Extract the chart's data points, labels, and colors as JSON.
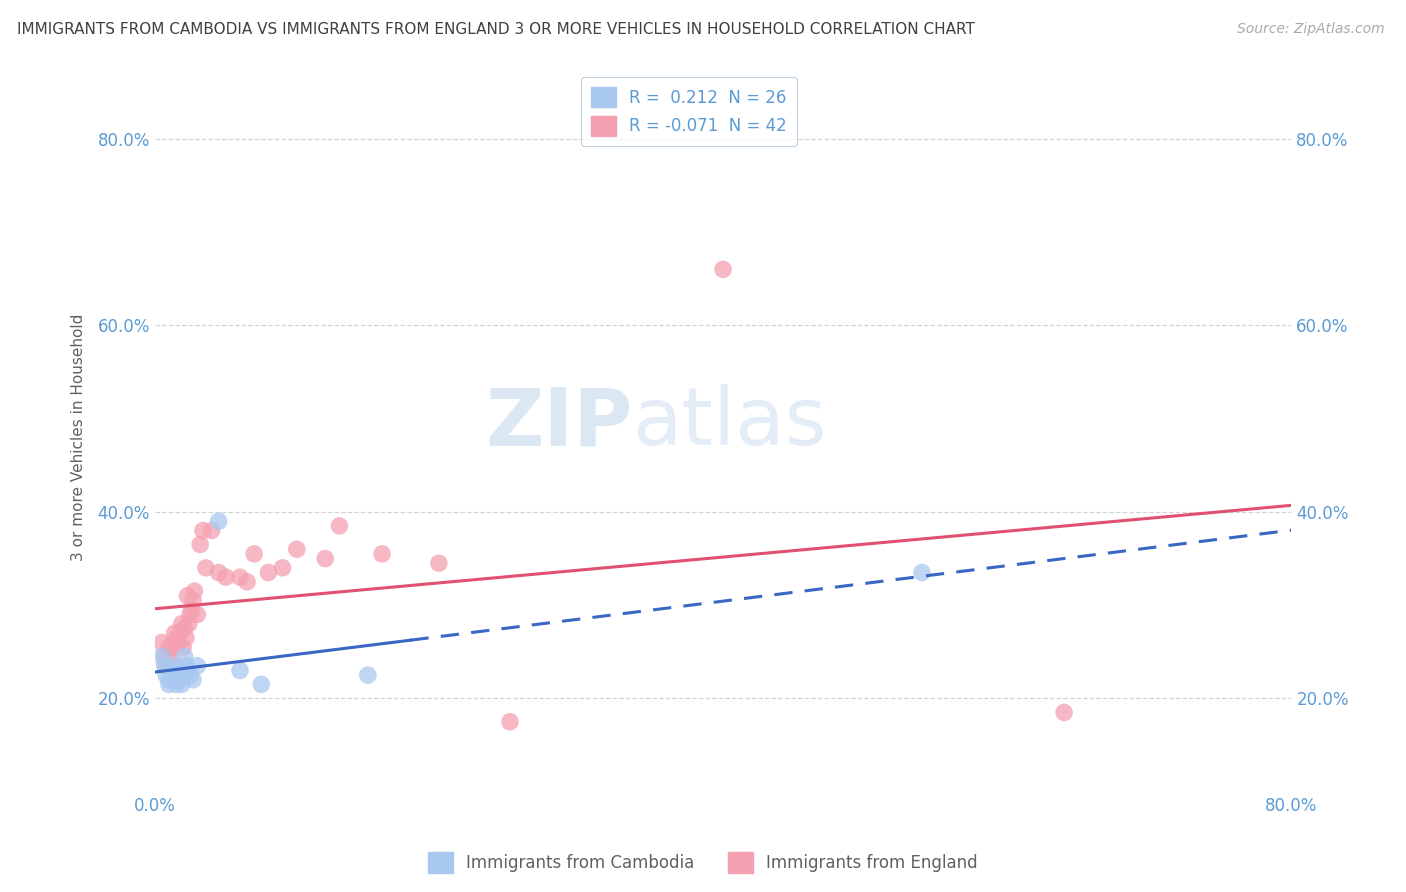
{
  "title": "IMMIGRANTS FROM CAMBODIA VS IMMIGRANTS FROM ENGLAND 3 OR MORE VEHICLES IN HOUSEHOLD CORRELATION CHART",
  "source": "Source: ZipAtlas.com",
  "legend_label1": "Immigrants from Cambodia",
  "legend_label2": "Immigrants from England",
  "cambodia_color": "#a8c8f0",
  "england_color": "#f4a0b0",
  "trendline_cambodia_color": "#3a66c4",
  "trendline_england_color": "#e05070",
  "background_color": "#ffffff",
  "grid_color": "#c8c8c8",
  "axis_label_color": "#5b9bd5",
  "title_color": "#404040",
  "watermark_color_zip": "#c8dff0",
  "watermark_color_atlas": "#c8dff0",
  "xmin": 0.0,
  "xmax": 0.8,
  "ymin": 0.1,
  "ymax": 0.86,
  "yticks": [
    0.2,
    0.4,
    0.6,
    0.8
  ],
  "xticks": [
    0.0,
    0.8
  ],
  "legend_r1": "R =  0.212  N = 26",
  "legend_r2": "R = -0.071  N = 42",
  "cambodia_x": [
    0.005,
    0.007,
    0.008,
    0.01,
    0.01,
    0.012,
    0.013,
    0.014,
    0.015,
    0.015,
    0.016,
    0.017,
    0.018,
    0.019,
    0.02,
    0.021,
    0.022,
    0.023,
    0.025,
    0.027,
    0.03,
    0.045,
    0.06,
    0.075,
    0.15,
    0.54
  ],
  "cambodia_y": [
    0.245,
    0.235,
    0.225,
    0.22,
    0.215,
    0.235,
    0.23,
    0.225,
    0.22,
    0.215,
    0.23,
    0.225,
    0.22,
    0.215,
    0.225,
    0.245,
    0.235,
    0.23,
    0.225,
    0.22,
    0.235,
    0.39,
    0.23,
    0.215,
    0.225,
    0.335
  ],
  "england_x": [
    0.005,
    0.007,
    0.008,
    0.01,
    0.01,
    0.012,
    0.013,
    0.014,
    0.015,
    0.016,
    0.017,
    0.018,
    0.019,
    0.02,
    0.021,
    0.022,
    0.023,
    0.024,
    0.025,
    0.026,
    0.027,
    0.028,
    0.03,
    0.032,
    0.034,
    0.036,
    0.04,
    0.045,
    0.05,
    0.06,
    0.065,
    0.07,
    0.08,
    0.09,
    0.1,
    0.12,
    0.13,
    0.16,
    0.2,
    0.25,
    0.4,
    0.64
  ],
  "england_y": [
    0.26,
    0.245,
    0.235,
    0.25,
    0.255,
    0.24,
    0.26,
    0.27,
    0.255,
    0.265,
    0.26,
    0.27,
    0.28,
    0.255,
    0.275,
    0.265,
    0.31,
    0.28,
    0.29,
    0.295,
    0.305,
    0.315,
    0.29,
    0.365,
    0.38,
    0.34,
    0.38,
    0.335,
    0.33,
    0.33,
    0.325,
    0.355,
    0.335,
    0.34,
    0.36,
    0.35,
    0.385,
    0.355,
    0.345,
    0.175,
    0.66,
    0.185
  ]
}
